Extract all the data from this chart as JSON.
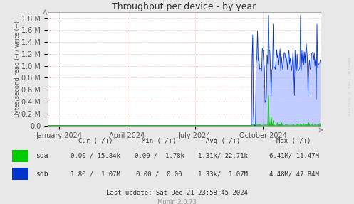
{
  "title": "Throughput per device - by year",
  "ylabel": "Bytes/second read (-) / write (+)",
  "bg_color": "#e8e8e8",
  "plot_bg_color": "#ffffff",
  "grid_color": "#ff9999",
  "x_tick_labels": [
    "January 2024",
    "April 2024",
    "July 2024",
    "October 2024"
  ],
  "y_tick_labels": [
    "0.0",
    "0.2 M",
    "0.4 M",
    "0.6 M",
    "0.8 M",
    "1.0 M",
    "1.2 M",
    "1.4 M",
    "1.6 M",
    "1.8 M"
  ],
  "sda_color": "#00cc00",
  "sdb_color": "#0033cc",
  "sdb_fill_color": "#99aaff",
  "footer": "Last update: Sat Dec 21 23:58:45 2024",
  "munin_version": "Munin 2.0.73",
  "watermark": "RRDTOOL / TOBI OETIKER",
  "col_headers": [
    "Cur (-/+)",
    "Min (-/+)",
    "Avg (-/+)",
    "Max (-/+)"
  ],
  "sda_row": [
    "0.00 / 15.84k",
    "0.00 /  1.78k",
    "1.31k/ 22.71k",
    "6.41M/ 11.47M"
  ],
  "sdb_row": [
    "1.80 /  1.07M",
    "0.00 /  0.00",
    "1.33k/  1.07M",
    "4.48M/ 47.84M"
  ]
}
